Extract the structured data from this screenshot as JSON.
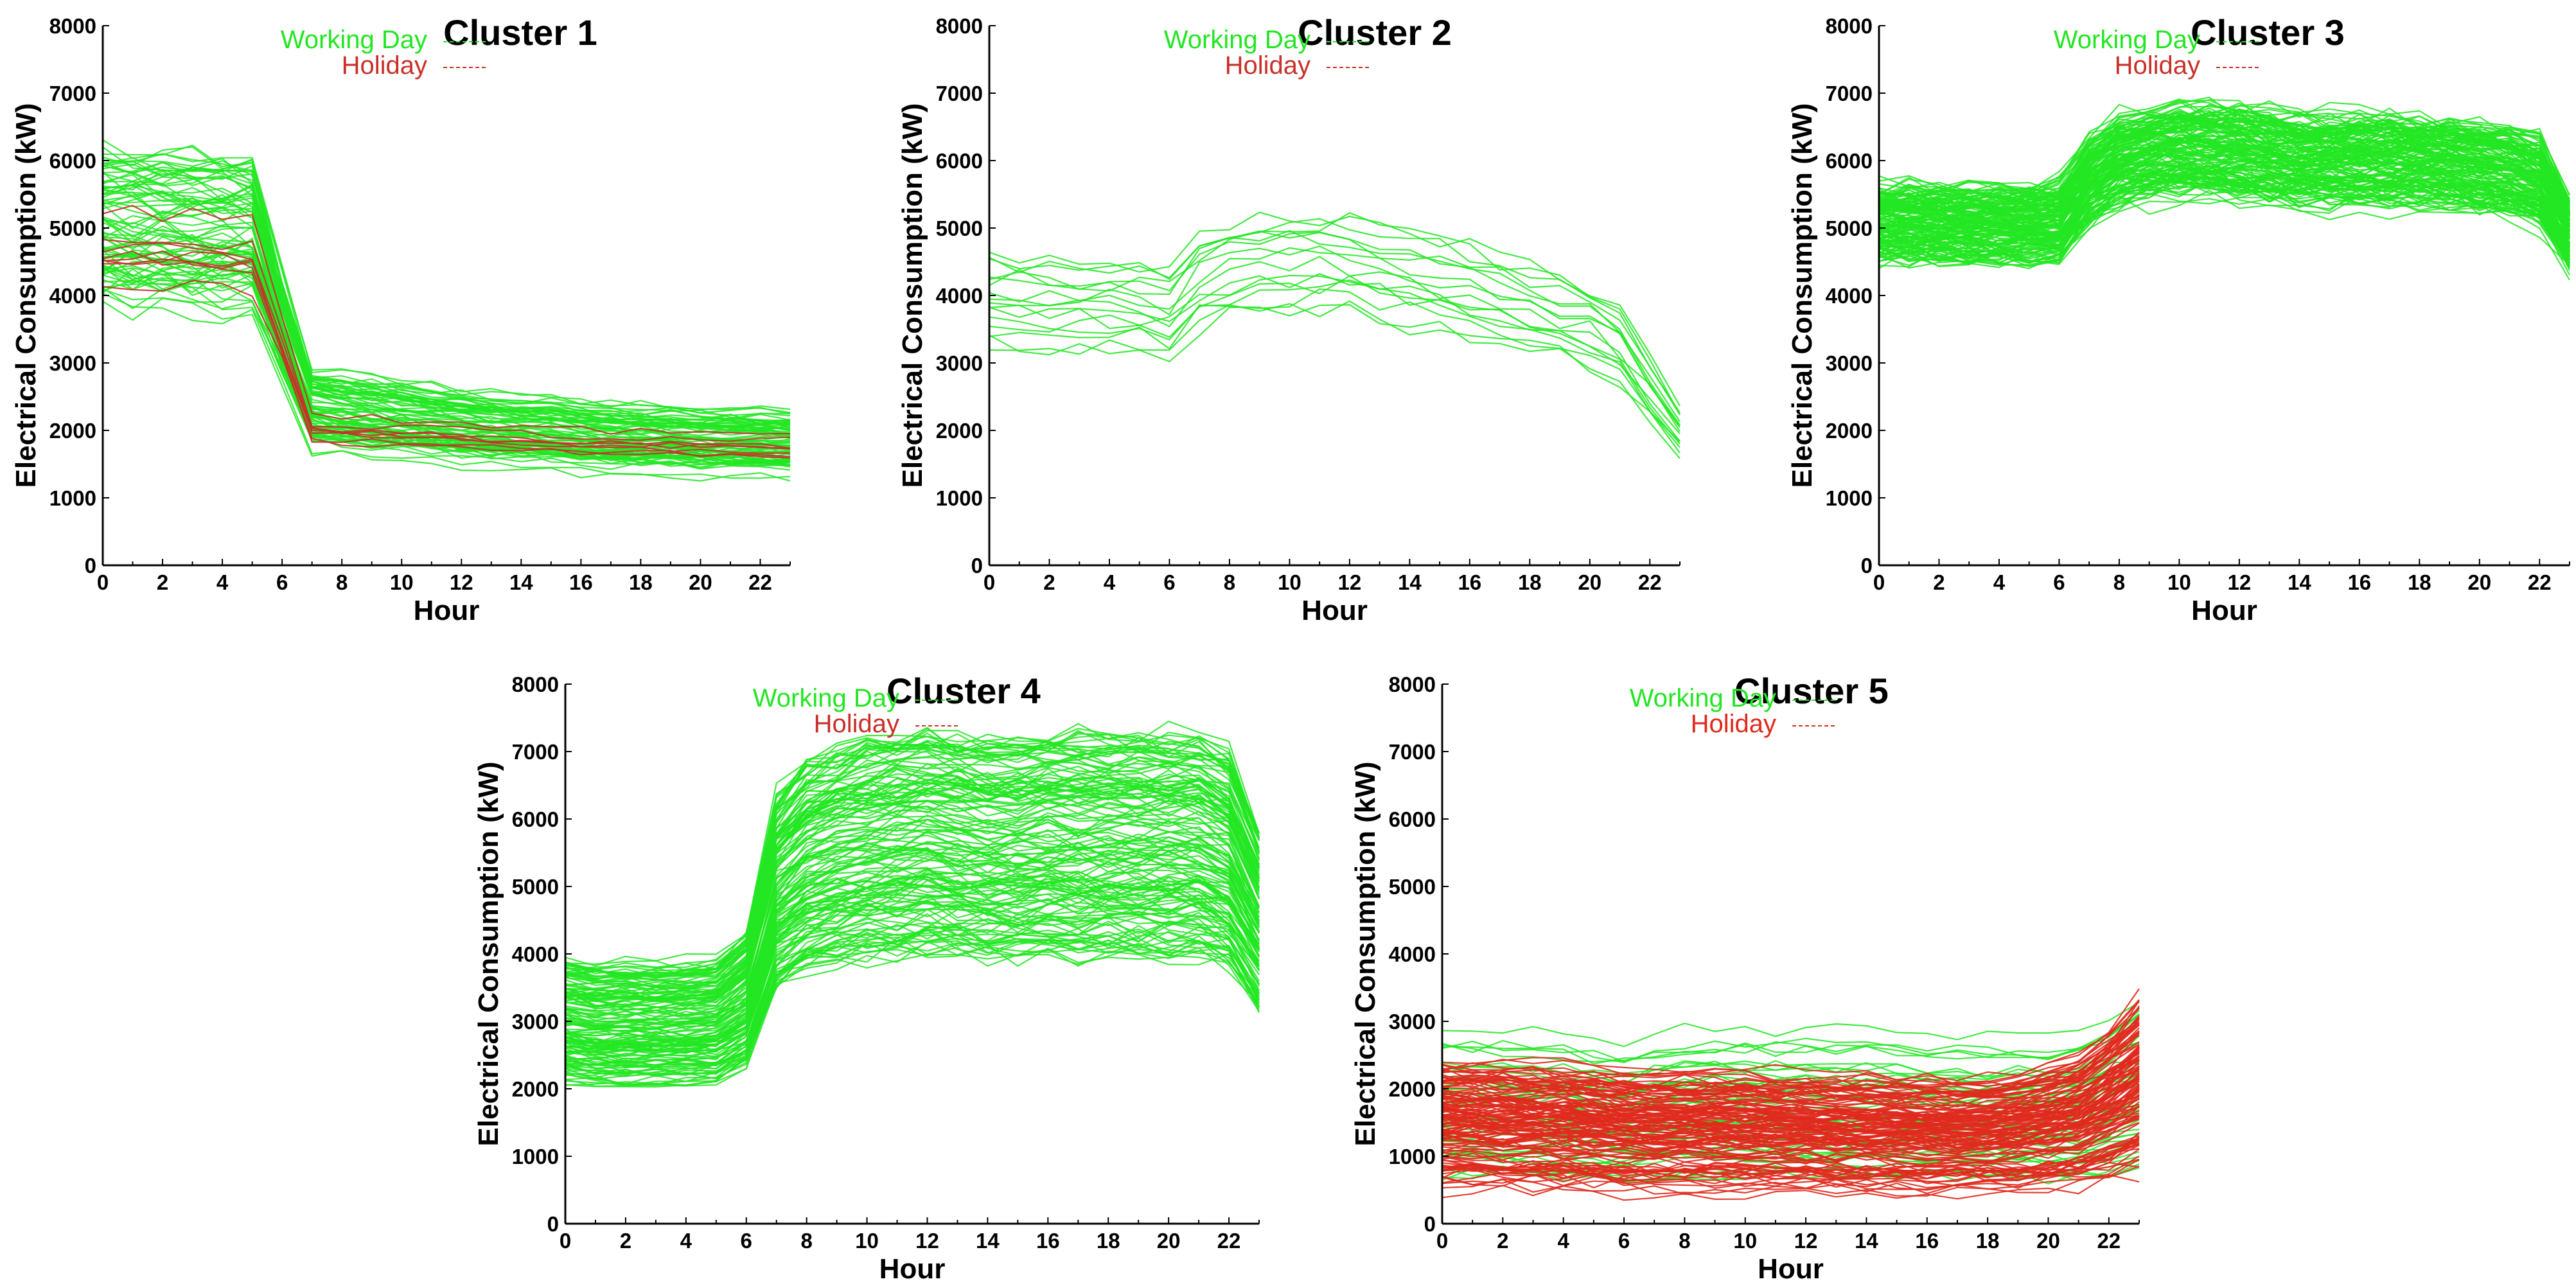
{
  "legend": {
    "working_label": "Working Day",
    "holiday_label": "Holiday"
  },
  "colors": {
    "working": "#22e622",
    "holiday": "#c8302a",
    "holiday_c5": "#e02a1e"
  },
  "axes": {
    "xlabel": "Hour",
    "ylabel": "Electrical Consumption (kW)",
    "xlim": [
      0,
      23
    ],
    "ylim": [
      0,
      8000
    ],
    "xticks": [
      "0",
      "2",
      "4",
      "6",
      "8",
      "10",
      "12",
      "14",
      "16",
      "18",
      "20",
      "22"
    ],
    "yticks": [
      "0",
      "1000",
      "2000",
      "3000",
      "4000",
      "5000",
      "6000",
      "7000",
      "8000"
    ]
  },
  "chart_data": [
    {
      "type": "line",
      "title": "Cluster 1",
      "xlabel": "Hour",
      "ylabel": "Electrical Consumption (kW)",
      "xlim": [
        0,
        23
      ],
      "ylim": [
        0,
        8000
      ],
      "x": [
        0,
        1,
        2,
        3,
        4,
        5,
        6,
        7,
        8,
        9,
        10,
        11,
        12,
        13,
        14,
        15,
        16,
        17,
        18,
        19,
        20,
        21,
        22,
        23
      ],
      "series": [
        {
          "group": "working",
          "count": 80,
          "values": [
            5000,
            4980,
            4950,
            4920,
            4900,
            4850,
            3500,
            2300,
            2250,
            2200,
            2150,
            2100,
            2050,
            2000,
            1980,
            1950,
            1900,
            1880,
            1860,
            1850,
            1840,
            1830,
            1820,
            1800
          ]
        },
        {
          "group": "holiday",
          "count": 8,
          "values": [
            4600,
            4580,
            4560,
            4540,
            4520,
            4480,
            3300,
            2000,
            1980,
            1960,
            1940,
            1920,
            1900,
            1880,
            1860,
            1840,
            1820,
            1800,
            1790,
            1780,
            1770,
            1760,
            1750,
            1750
          ]
        }
      ]
    },
    {
      "type": "line",
      "title": "Cluster 2",
      "xlabel": "Hour",
      "ylabel": "Electrical Consumption (kW)",
      "xlim": [
        0,
        23
      ],
      "ylim": [
        0,
        8000
      ],
      "x": [
        0,
        1,
        2,
        3,
        4,
        5,
        6,
        7,
        8,
        9,
        10,
        11,
        12,
        13,
        14,
        15,
        16,
        17,
        18,
        19,
        20,
        21,
        22,
        23
      ],
      "series": [
        {
          "group": "working",
          "count": 16,
          "values": [
            3900,
            3880,
            3860,
            3840,
            3820,
            3820,
            3700,
            4200,
            4350,
            4400,
            4420,
            4420,
            4400,
            4300,
            4200,
            4100,
            4000,
            3900,
            3800,
            3650,
            3500,
            3200,
            2600,
            2000
          ]
        }
      ]
    },
    {
      "type": "line",
      "title": "Cluster 3",
      "xlabel": "Hour",
      "ylabel": "Electrical Consumption (kW)",
      "xlim": [
        0,
        23
      ],
      "ylim": [
        0,
        8000
      ],
      "x": [
        0,
        1,
        2,
        3,
        4,
        5,
        6,
        7,
        8,
        9,
        10,
        11,
        12,
        13,
        14,
        15,
        16,
        17,
        18,
        19,
        20,
        21,
        22,
        23
      ],
      "series": [
        {
          "group": "working",
          "count": 160,
          "values": [
            5100,
            5080,
            5060,
            5050,
            5050,
            5060,
            5100,
            5700,
            6000,
            6100,
            6150,
            6150,
            6120,
            6050,
            6000,
            6000,
            6000,
            6000,
            5980,
            5950,
            5900,
            5850,
            5700,
            4900
          ]
        }
      ]
    },
    {
      "type": "line",
      "title": "Cluster 4",
      "xlabel": "Hour",
      "ylabel": "Electrical Consumption (kW)",
      "xlim": [
        0,
        23
      ],
      "ylim": [
        0,
        8000
      ],
      "x": [
        0,
        1,
        2,
        3,
        4,
        5,
        6,
        7,
        8,
        9,
        10,
        11,
        12,
        13,
        14,
        15,
        16,
        17,
        18,
        19,
        20,
        21,
        22,
        23
      ],
      "series": [
        {
          "group": "working",
          "count": 150,
          "values": [
            3000,
            2950,
            2950,
            2950,
            2960,
            3000,
            3300,
            4900,
            5300,
            5450,
            5550,
            5600,
            5650,
            5600,
            5550,
            5550,
            5600,
            5600,
            5600,
            5600,
            5600,
            5600,
            5400,
            4500
          ]
        }
      ]
    },
    {
      "type": "line",
      "title": "Cluster 5",
      "xlabel": "Hour",
      "ylabel": "Electrical Consumption (kW)",
      "xlim": [
        0,
        23
      ],
      "ylim": [
        0,
        8000
      ],
      "x": [
        0,
        1,
        2,
        3,
        4,
        5,
        6,
        7,
        8,
        9,
        10,
        11,
        12,
        13,
        14,
        15,
        16,
        17,
        18,
        19,
        20,
        21,
        22,
        23
      ],
      "series": [
        {
          "group": "working",
          "count": 45,
          "values": [
            1700,
            1690,
            1680,
            1670,
            1660,
            1600,
            1550,
            1650,
            1700,
            1700,
            1700,
            1700,
            1700,
            1690,
            1680,
            1670,
            1660,
            1650,
            1640,
            1630,
            1620,
            1650,
            1800,
            2000
          ]
        },
        {
          "group": "holiday",
          "count": 130,
          "values": [
            1500,
            1490,
            1480,
            1470,
            1460,
            1440,
            1400,
            1400,
            1400,
            1400,
            1390,
            1380,
            1380,
            1370,
            1360,
            1350,
            1340,
            1340,
            1350,
            1380,
            1450,
            1550,
            1800,
            2100
          ]
        }
      ]
    }
  ]
}
